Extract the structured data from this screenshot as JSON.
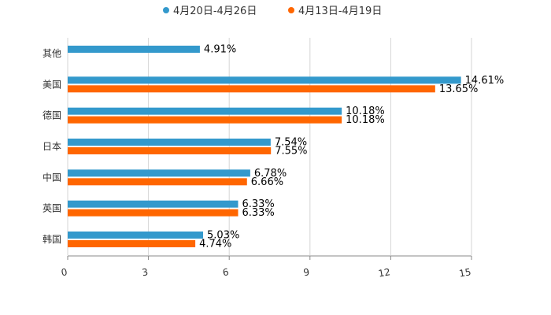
{
  "chart_data": {
    "type": "bar",
    "orientation": "horizontal",
    "categories": [
      "其他",
      "美国",
      "德国",
      "日本",
      "中国",
      "英国",
      "韩国"
    ],
    "series": [
      {
        "name": "4月20日-4月26日",
        "color": "#3399CC",
        "values": [
          4.91,
          14.61,
          10.18,
          7.54,
          6.78,
          6.33,
          5.03
        ],
        "labels": [
          "4.91%",
          "14.61%",
          "10.18%",
          "7.54%",
          "6.78%",
          "6.33%",
          "5.03%"
        ]
      },
      {
        "name": "4月13日-4月19日",
        "color": "#FF6600",
        "values": [
          null,
          13.65,
          10.18,
          7.55,
          6.66,
          6.33,
          4.74
        ],
        "labels": [
          null,
          "13.65%",
          "10.18%",
          "7.55%",
          "6.66%",
          "6.33%",
          "4.74%"
        ]
      }
    ],
    "xlim": [
      0,
      15
    ],
    "xticks": [
      "0",
      "3",
      "6",
      "9",
      "12",
      "15"
    ],
    "xtick_values": [
      0,
      3,
      6,
      9,
      12,
      15
    ],
    "grid": true,
    "legend_position": "top-center",
    "title": "",
    "xlabel": "",
    "ylabel": ""
  }
}
